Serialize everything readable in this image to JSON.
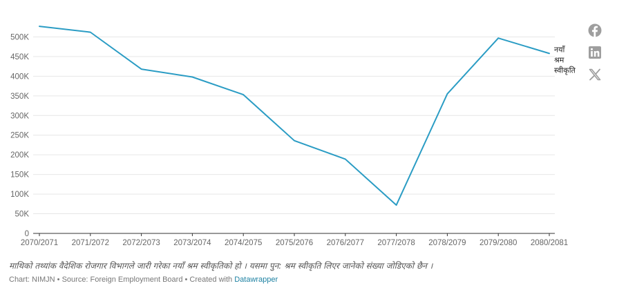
{
  "chart_data": {
    "type": "line",
    "categories": [
      "2070/2071",
      "2071/2072",
      "2072/2073",
      "2073/2074",
      "2074/2075",
      "2075/2076",
      "2076/2077",
      "2077/2078",
      "2078/2079",
      "2079/2080",
      "2080/2081"
    ],
    "series": [
      {
        "name": "नयाँ श्रम स्वीकृति",
        "name_lines": [
          "नयाँ",
          "श्रम",
          "स्वीकृति"
        ],
        "values": [
          527000,
          512000,
          418000,
          398000,
          353000,
          236000,
          189000,
          72000,
          355000,
          497000,
          458000
        ],
        "color": "#2a9cc4"
      }
    ],
    "y_ticks": [
      0,
      50000,
      100000,
      150000,
      200000,
      250000,
      300000,
      350000,
      400000,
      450000,
      500000
    ],
    "y_tick_labels": [
      "0",
      "50K",
      "100K",
      "150K",
      "200K",
      "250K",
      "300K",
      "350K",
      "400K",
      "450K",
      "500K"
    ],
    "ylim": [
      0,
      550000
    ],
    "xlabel": "",
    "ylabel": "",
    "grid": true,
    "legend": "end-of-line label"
  },
  "note": "माथिको तथ्यांक वैदेशिक रोजगार विभागले जारी गरेका नयाँ श्रम स्वीकृतिको हो । यसमा पुन: श्रम स्वीकृति लिएर जानेको संख्या जोडिएको छैन ।",
  "credits": {
    "prefix": "Chart: NIMJN • Source: Foreign Employment Board • Created with ",
    "link": "Datawrapper"
  },
  "share_icons": [
    "facebook-icon",
    "linkedin-icon",
    "x-icon"
  ],
  "colors": {
    "line": "#2a9cc4",
    "grid": "#e6e6e6",
    "axis": "#333333",
    "icon": "#9e9e9e"
  }
}
